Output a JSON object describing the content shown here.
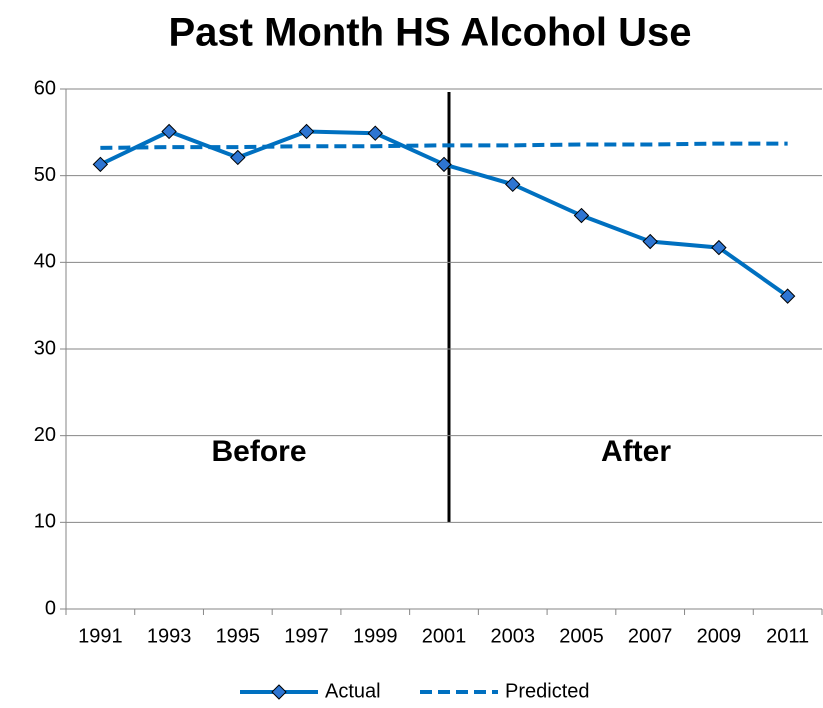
{
  "chart_data": {
    "type": "line",
    "title": "Past Month HS Alcohol Use",
    "categories": [
      "1991",
      "1993",
      "1995",
      "1997",
      "1999",
      "2001",
      "2003",
      "2005",
      "2007",
      "2009",
      "2011"
    ],
    "series": [
      {
        "name": "Actual",
        "color": "#0070c0",
        "values": [
          51.3,
          55.1,
          52.1,
          55.1,
          54.9,
          51.3,
          49.0,
          45.4,
          42.4,
          41.7,
          36.1
        ]
      },
      {
        "name": "Predicted",
        "color": "#0070c0",
        "values": [
          53.2,
          53.3,
          53.3,
          53.4,
          53.4,
          53.5,
          53.5,
          53.6,
          53.6,
          53.7,
          53.7
        ]
      }
    ],
    "ylim": [
      0,
      60
    ],
    "yticks": [
      0,
      10,
      20,
      30,
      40,
      50,
      60
    ],
    "grid": true,
    "annotations": [
      "Before",
      "After"
    ]
  }
}
